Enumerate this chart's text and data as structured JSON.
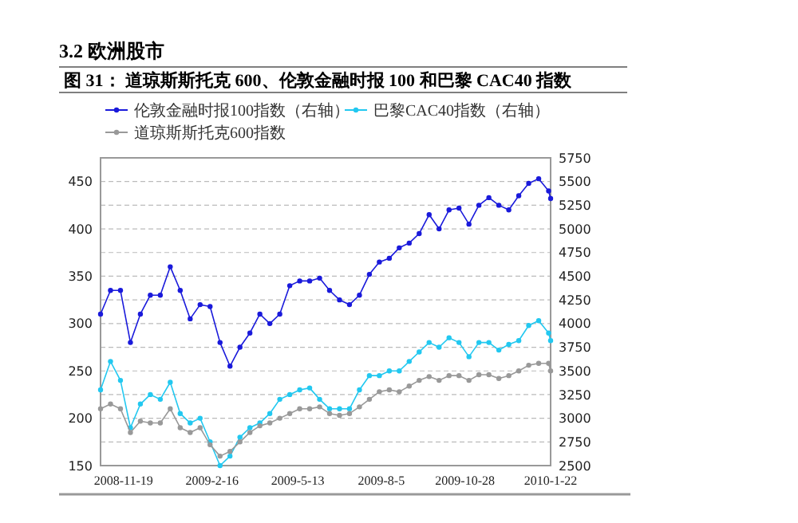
{
  "chart_data": {
    "type": "line",
    "subtitle": "3.2 欧洲股市",
    "title": "图 31：  道琼斯斯托克 600、伦敦金融时报 100 和巴黎 CAC40 指数",
    "x": [
      "2008-10-27",
      "2008-11-06",
      "2008-11-16",
      "2008-11-26",
      "2008-12-06",
      "2008-12-16",
      "2008-12-26",
      "2009-01-05",
      "2009-01-15",
      "2009-01-25",
      "2009-02-04",
      "2009-02-14",
      "2009-02-24",
      "2009-03-06",
      "2009-03-16",
      "2009-03-26",
      "2009-04-05",
      "2009-04-15",
      "2009-04-25",
      "2009-05-05",
      "2009-05-15",
      "2009-05-25",
      "2009-06-04",
      "2009-06-14",
      "2009-06-24",
      "2009-07-04",
      "2009-07-14",
      "2009-07-24",
      "2009-08-03",
      "2009-08-13",
      "2009-08-23",
      "2009-09-02",
      "2009-09-12",
      "2009-09-22",
      "2009-10-02",
      "2009-10-12",
      "2009-10-22",
      "2009-11-01",
      "2009-11-11",
      "2009-11-21",
      "2009-12-01",
      "2009-12-11",
      "2009-12-21",
      "2009-12-31",
      "2010-01-10",
      "2010-01-20",
      "2010-01-22"
    ],
    "series": [
      {
        "name": "伦敦金融时报100指数（右轴）",
        "color": "#1a1adb",
        "axis": "y2",
        "values": [
          4100,
          4350,
          4350,
          3800,
          4100,
          4300,
          4300,
          4600,
          4350,
          4050,
          4200,
          4180,
          3800,
          3550,
          3750,
          3900,
          4100,
          4000,
          4100,
          4400,
          4450,
          4450,
          4480,
          4350,
          4250,
          4200,
          4300,
          4520,
          4650,
          4690,
          4800,
          4850,
          4950,
          5150,
          5000,
          5200,
          5220,
          5050,
          5250,
          5330,
          5250,
          5200,
          5350,
          5480,
          5530,
          5400,
          5320
        ]
      },
      {
        "name": "巴黎CAC40指数（右轴）",
        "color": "#22c8f0",
        "axis": "y2",
        "values": [
          3300,
          3600,
          3400,
          2900,
          3150,
          3250,
          3200,
          3380,
          3050,
          2950,
          3000,
          2750,
          2500,
          2600,
          2800,
          2900,
          2950,
          3050,
          3200,
          3250,
          3300,
          3320,
          3200,
          3100,
          3100,
          3100,
          3300,
          3450,
          3450,
          3500,
          3500,
          3600,
          3700,
          3800,
          3750,
          3850,
          3800,
          3650,
          3800,
          3800,
          3720,
          3780,
          3820,
          3980,
          4030,
          3900,
          3820
        ]
      },
      {
        "name": "道琼斯斯托克600指数",
        "color": "#999999",
        "values": [
          210,
          215,
          210,
          185,
          197,
          195,
          195,
          210,
          190,
          185,
          190,
          172,
          160,
          165,
          175,
          185,
          192,
          195,
          200,
          205,
          210,
          210,
          212,
          205,
          203,
          205,
          212,
          220,
          228,
          230,
          228,
          234,
          240,
          244,
          240,
          245,
          245,
          240,
          246,
          246,
          242,
          245,
          250,
          256,
          258,
          258,
          250
        ]
      }
    ],
    "xlim": [
      "2008-10-27",
      "2010-01-22"
    ],
    "xticks": [
      {
        "value": "2008-11-19",
        "label": "2008-11-19"
      },
      {
        "value": "2009-02-16",
        "label": "2009-2-16"
      },
      {
        "value": "2009-05-13",
        "label": "2009-5-13"
      },
      {
        "value": "2009-08-05",
        "label": "2009-8-5"
      },
      {
        "value": "2009-10-28",
        "label": "2009-10-28"
      },
      {
        "value": "2010-01-22",
        "label": "2010-1-22"
      }
    ],
    "ylim": [
      150,
      475
    ],
    "yticks": [
      150,
      200,
      250,
      300,
      350,
      400,
      450
    ],
    "y2lim": [
      2500,
      5750
    ],
    "y2ticks": [
      2500,
      2750,
      3000,
      3250,
      3500,
      3750,
      4000,
      4250,
      4500,
      4750,
      5000,
      5250,
      5500,
      5750
    ],
    "grid": "y",
    "legend": "top",
    "marker": "circle",
    "line_style": "solid"
  }
}
